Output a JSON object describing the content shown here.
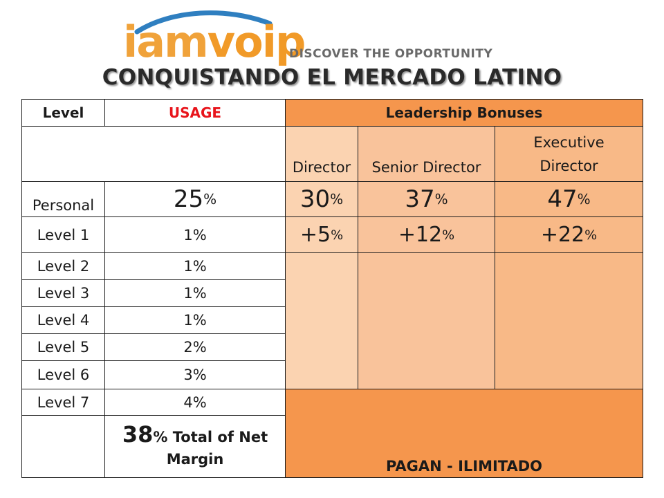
{
  "logo": {
    "word_left": "iam",
    "word_right": "voip",
    "tagline": "DISCOVER THE OPPORTUNITY"
  },
  "title": "CONQUISTANDO EL MERCADO LATINO",
  "colors": {
    "header_orange": "#f5964d",
    "light_peach": "#fbd3b1",
    "mid_peach": "#f9c39b",
    "peach": "#f8b987",
    "bottom_orange": "#f5964d",
    "usage_red": "#e8141b"
  },
  "table": {
    "header": {
      "level": "Level",
      "usage": "USAGE",
      "bonuses": "Leadership Bonuses"
    },
    "subheader": {
      "director": "Director",
      "senior_director": "Senior Director",
      "executive_director": "Executive Director"
    },
    "rows": [
      {
        "level": "Personal",
        "usage_num": "25",
        "usage_pct": "%"
      },
      {
        "level": "Level 1",
        "usage": "1%"
      },
      {
        "level": "Level 2",
        "usage": "1%"
      },
      {
        "level": "Level 3",
        "usage": "1%"
      },
      {
        "level": "Level 4",
        "usage": "1%"
      },
      {
        "level": "Level 5",
        "usage": "2%"
      },
      {
        "level": "Level 6",
        "usage": "3%"
      },
      {
        "level": "Level 7",
        "usage": "4%"
      }
    ],
    "personal_bonus": [
      {
        "num": "30",
        "pct": "%"
      },
      {
        "num": "37",
        "pct": "%"
      },
      {
        "num": "47",
        "pct": "%"
      }
    ],
    "level1_bonus": [
      {
        "num": "+5",
        "pct": "%"
      },
      {
        "num": "+12",
        "pct": "%"
      },
      {
        "num": "+22",
        "pct": "%"
      }
    ],
    "total": {
      "num": "38",
      "text": "% Total of Net Margin"
    },
    "unlimited": "PAGAN - ILIMITADO"
  }
}
